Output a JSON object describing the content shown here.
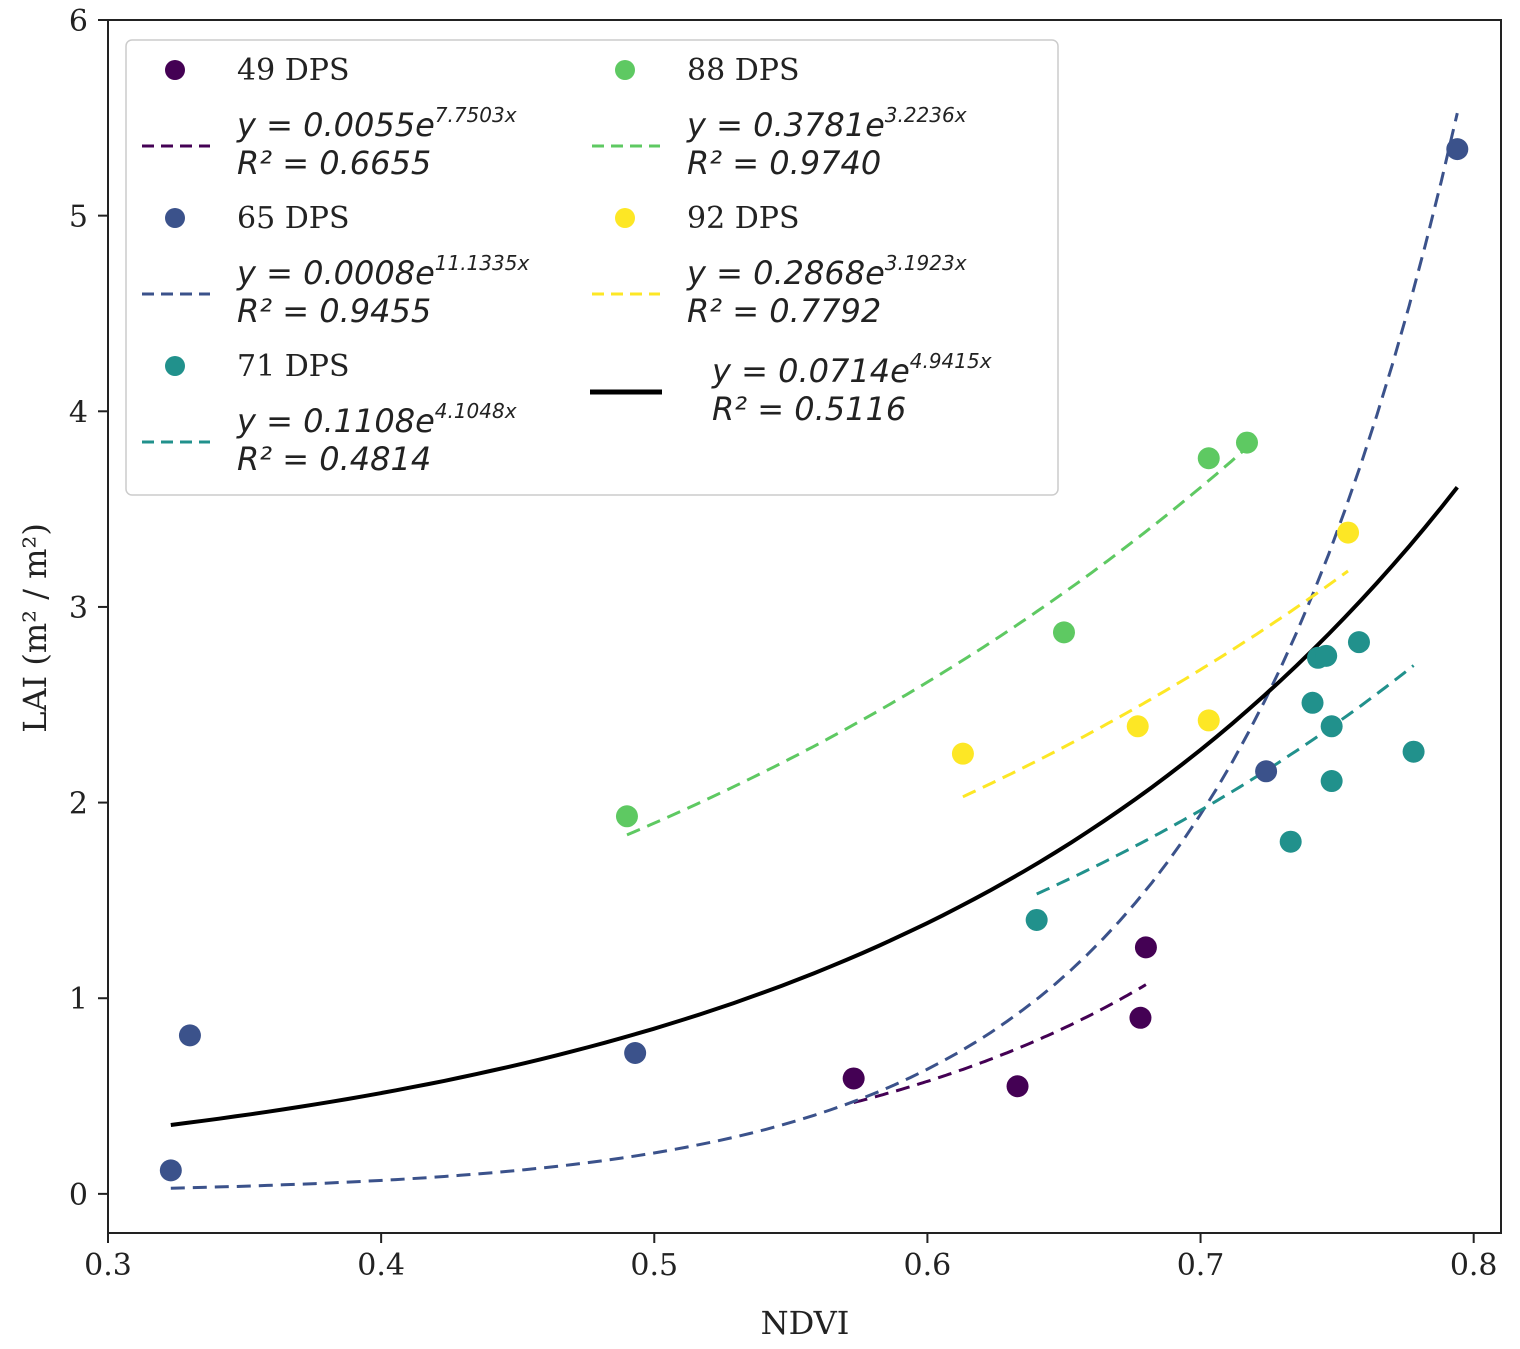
{
  "chart_data": {
    "type": "scatter",
    "title": "",
    "xlabel": "NDVI",
    "ylabel": "LAI (m² / m²)",
    "xlim": [
      0.3,
      0.81
    ],
    "ylim": [
      -0.2,
      6.0
    ],
    "xticks": [
      0.3,
      0.4,
      0.5,
      0.6,
      0.7,
      0.8
    ],
    "xtick_labels": [
      "0.3",
      "0.4",
      "0.5",
      "0.6",
      "0.7",
      "0.8"
    ],
    "yticks": [
      0,
      1,
      2,
      3,
      4,
      5,
      6
    ],
    "ytick_labels": [
      "0",
      "1",
      "2",
      "3",
      "4",
      "5",
      "6"
    ],
    "grid": false,
    "legend_position": "top-left",
    "series": [
      {
        "name": "49 DPS",
        "color": "#440154",
        "points": [
          [
            0.573,
            0.59
          ],
          [
            0.633,
            0.55
          ],
          [
            0.678,
            0.9
          ],
          [
            0.68,
            1.26
          ]
        ],
        "fit": {
          "a": 0.0055,
          "b": 7.7503,
          "x_range": [
            0.573,
            0.68
          ],
          "label_eq": "y = 0.0055e",
          "exp": "7.7503x",
          "label_r2": "R² = 0.6655"
        }
      },
      {
        "name": "65 DPS",
        "color": "#3b528b",
        "points": [
          [
            0.323,
            0.12
          ],
          [
            0.33,
            0.81
          ],
          [
            0.493,
            0.72
          ],
          [
            0.724,
            2.16
          ],
          [
            0.794,
            5.34
          ]
        ],
        "fit": {
          "a": 0.0008,
          "b": 11.1335,
          "x_range": [
            0.323,
            0.794
          ],
          "label_eq": "y = 0.0008e",
          "exp": "11.1335x",
          "label_r2": "R² = 0.9455"
        }
      },
      {
        "name": "71 DPS",
        "color": "#21918c",
        "points": [
          [
            0.64,
            1.4
          ],
          [
            0.733,
            1.8
          ],
          [
            0.741,
            2.51
          ],
          [
            0.743,
            2.74
          ],
          [
            0.746,
            2.75
          ],
          [
            0.748,
            2.39
          ],
          [
            0.748,
            2.11
          ],
          [
            0.758,
            2.82
          ],
          [
            0.778,
            2.26
          ]
        ],
        "fit": {
          "a": 0.1108,
          "b": 4.1048,
          "x_range": [
            0.64,
            0.778
          ],
          "label_eq": "y = 0.1108e",
          "exp": "4.1048x",
          "label_r2": "R² = 0.4814"
        }
      },
      {
        "name": "88 DPS",
        "color": "#5ec962",
        "points": [
          [
            0.49,
            1.93
          ],
          [
            0.65,
            2.87
          ],
          [
            0.703,
            3.76
          ],
          [
            0.717,
            3.84
          ]
        ],
        "fit": {
          "a": 0.3781,
          "b": 3.2236,
          "x_range": [
            0.49,
            0.717
          ],
          "label_eq": "y = 0.3781e",
          "exp": "3.2236x",
          "label_r2": "R² = 0.9740"
        }
      },
      {
        "name": "92 DPS",
        "color": "#fde725",
        "points": [
          [
            0.613,
            2.25
          ],
          [
            0.677,
            2.39
          ],
          [
            0.703,
            2.42
          ],
          [
            0.754,
            3.38
          ]
        ],
        "fit": {
          "a": 0.2868,
          "b": 3.1923,
          "x_range": [
            0.613,
            0.754
          ],
          "label_eq": "y = 0.2868e",
          "exp": "3.1923x",
          "label_r2": "R² = 0.7792"
        }
      }
    ],
    "overall_fit": {
      "a": 0.0714,
      "b": 4.9415,
      "x_range": [
        0.323,
        0.794
      ],
      "color": "#000000",
      "label_eq": "y = 0.0714e",
      "exp": "4.9415x",
      "label_r2": "R² = 0.5116"
    }
  }
}
